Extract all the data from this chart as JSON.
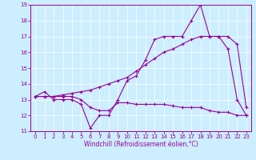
{
  "xlabel": "Windchill (Refroidissement éolien,°C)",
  "background_color": "#cceeff",
  "line_color": "#990099",
  "xlim": [
    -0.5,
    23.5
  ],
  "ylim": [
    11,
    19
  ],
  "xticks": [
    0,
    1,
    2,
    3,
    4,
    5,
    6,
    7,
    8,
    9,
    10,
    11,
    12,
    13,
    14,
    15,
    16,
    17,
    18,
    19,
    20,
    21,
    22,
    23
  ],
  "yticks": [
    11,
    12,
    13,
    14,
    15,
    16,
    17,
    18,
    19
  ],
  "line1_x": [
    0,
    1,
    2,
    3,
    4,
    5,
    6,
    7,
    8,
    9,
    10,
    11,
    12,
    13,
    14,
    15,
    16,
    17,
    18,
    19,
    20,
    21,
    22,
    23
  ],
  "line1_y": [
    13.2,
    13.5,
    13.0,
    13.0,
    13.0,
    12.7,
    11.2,
    12.0,
    12.0,
    13.0,
    14.2,
    14.5,
    15.5,
    16.8,
    17.0,
    17.0,
    17.0,
    18.0,
    19.0,
    17.0,
    17.0,
    16.2,
    13.0,
    12.0
  ],
  "line2_x": [
    0,
    1,
    2,
    3,
    4,
    5,
    6,
    7,
    8,
    9,
    10,
    11,
    12,
    13,
    14,
    15,
    16,
    17,
    18,
    19,
    20,
    21,
    22,
    23
  ],
  "line2_y": [
    13.2,
    13.2,
    13.2,
    13.3,
    13.4,
    13.5,
    13.6,
    13.8,
    14.0,
    14.2,
    14.4,
    14.8,
    15.2,
    15.6,
    16.0,
    16.2,
    16.5,
    16.8,
    17.0,
    17.0,
    17.0,
    17.0,
    16.5,
    12.5
  ],
  "line3_x": [
    0,
    1,
    2,
    3,
    4,
    5,
    6,
    7,
    8,
    9,
    10,
    11,
    12,
    13,
    14,
    15,
    16,
    17,
    18,
    19,
    20,
    21,
    22,
    23
  ],
  "line3_y": [
    13.2,
    13.2,
    13.2,
    13.2,
    13.2,
    13.0,
    12.5,
    12.3,
    12.3,
    12.8,
    12.8,
    12.7,
    12.7,
    12.7,
    12.7,
    12.6,
    12.5,
    12.5,
    12.5,
    12.3,
    12.2,
    12.2,
    12.0,
    12.0
  ],
  "xlabel_fontsize": 5.5,
  "tick_fontsize": 5,
  "linewidth": 0.8,
  "markersize": 3
}
